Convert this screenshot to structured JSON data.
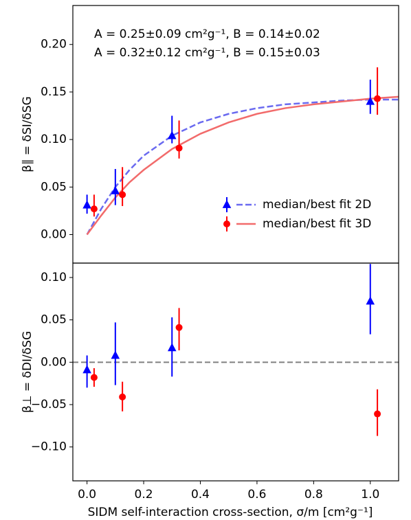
{
  "chart_data": [
    {
      "type": "errorbar",
      "ylabel": "β∥ = δSI/δSG",
      "annotations": [
        {
          "text": "A = 0.25±0.09 cm²g⁻¹, B = 0.14±0.02",
          "color": "#0000ff"
        },
        {
          "text": "A = 0.32±0.12 cm²g⁻¹, B = 0.15±0.03",
          "color": "#ff0000"
        }
      ],
      "xlim": [
        -0.05,
        1.1
      ],
      "ylim": [
        -0.03,
        0.241
      ],
      "yticks": [
        {
          "value": 0,
          "label": "0.00"
        },
        {
          "value": 0.05,
          "label": "0.05"
        },
        {
          "value": 0.1,
          "label": "0.10"
        },
        {
          "value": 0.15,
          "label": "0.15"
        },
        {
          "value": 0.2,
          "label": "0.20"
        }
      ],
      "legend": "lower right",
      "series": [
        {
          "name": "median/best fit 2D",
          "color": "#0000ff",
          "marker": "triangle",
          "x": [
            0,
            0.1,
            0.3,
            1.0
          ],
          "values": [
            0.031,
            0.046,
            0.104,
            0.14
          ],
          "low": [
            0.022,
            0.031,
            0.096,
            0.127
          ],
          "high": [
            0.042,
            0.069,
            0.125,
            0.163
          ]
        },
        {
          "name": "median/best fit 3D",
          "color": "#ff0000",
          "marker": "circle",
          "x": [
            0.025,
            0.125,
            0.325,
            1.025
          ],
          "values": [
            0.027,
            0.042,
            0.091,
            0.143
          ],
          "low": [
            0.019,
            0.03,
            0.08,
            0.126
          ],
          "high": [
            0.042,
            0.071,
            0.12,
            0.176
          ]
        }
      ],
      "fits": [
        {
          "color": "#6a6af0",
          "style": "dashed",
          "x": [
            0,
            0.05,
            0.1,
            0.15,
            0.2,
            0.3,
            0.4,
            0.5,
            0.6,
            0.7,
            0.8,
            0.9,
            1.0,
            1.1
          ],
          "values": [
            0,
            0.027,
            0.05,
            0.068,
            0.083,
            0.104,
            0.118,
            0.127,
            0.133,
            0.137,
            0.139,
            0.141,
            0.142,
            0.142
          ]
        },
        {
          "color": "#f26b6b",
          "style": "solid",
          "x": [
            0,
            0.05,
            0.1,
            0.15,
            0.2,
            0.3,
            0.4,
            0.5,
            0.6,
            0.7,
            0.8,
            0.9,
            1.0,
            1.1
          ],
          "values": [
            0,
            0.02,
            0.039,
            0.055,
            0.068,
            0.09,
            0.106,
            0.118,
            0.127,
            0.133,
            0.137,
            0.14,
            0.143,
            0.145
          ]
        }
      ]
    },
    {
      "type": "errorbar",
      "ylabel": "β⊥ = δDI/δSG",
      "xlabel": "SIDM self-interaction cross-section, σ/m [cm²g⁻¹]",
      "xlim": [
        -0.05,
        1.1
      ],
      "xticks": [
        {
          "value": 0,
          "label": "0.0"
        },
        {
          "value": 0.2,
          "label": "0.2"
        },
        {
          "value": 0.4,
          "label": "0.4"
        },
        {
          "value": 0.6,
          "label": "0.6"
        },
        {
          "value": 0.8,
          "label": "0.8"
        },
        {
          "value": 1.0,
          "label": "1.0"
        }
      ],
      "ylim": [
        -0.14,
        0.117
      ],
      "yticks": [
        {
          "value": -0.1,
          "label": "−0.10"
        },
        {
          "value": -0.05,
          "label": "−0.05"
        },
        {
          "value": 0,
          "label": "0.00"
        },
        {
          "value": 0.05,
          "label": "0.05"
        },
        {
          "value": 0.1,
          "label": "0.10"
        }
      ],
      "hline": {
        "value": 0,
        "color": "#808080",
        "style": "dashed"
      },
      "series": [
        {
          "color": "#0000ff",
          "marker": "triangle",
          "x": [
            0,
            0.1,
            0.3,
            1.0
          ],
          "values": [
            -0.009,
            0.008,
            0.017,
            0.072
          ],
          "low": [
            -0.03,
            -0.027,
            -0.017,
            0.033
          ],
          "high": [
            0.008,
            0.047,
            0.053,
            0.116
          ]
        },
        {
          "color": "#ff0000",
          "marker": "circle",
          "x": [
            0.025,
            0.125,
            0.325,
            1.025
          ],
          "values": [
            -0.018,
            -0.041,
            0.041,
            -0.061
          ],
          "low": [
            -0.029,
            -0.058,
            0.014,
            -0.087
          ],
          "high": [
            -0.007,
            -0.023,
            0.064,
            -0.032
          ]
        }
      ]
    }
  ]
}
